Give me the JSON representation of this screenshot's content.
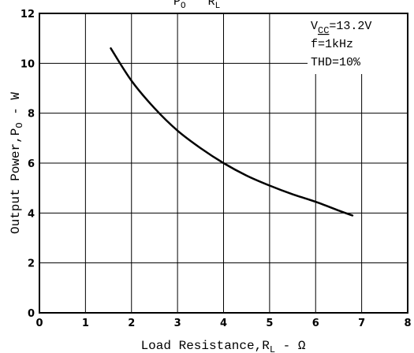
{
  "chart_data": {
    "type": "line",
    "title_fragment": [
      "P",
      "O",
      "R",
      "L"
    ],
    "xlabel": {
      "main": "Load Resistance,R",
      "sub": "L",
      "unit": " -  Ω"
    },
    "ylabel": {
      "main": "Output Power,P",
      "sub": "O",
      "unit": " - W"
    },
    "xlim": [
      0,
      8
    ],
    "ylim": [
      0,
      12
    ],
    "x_ticks": [
      "0",
      "1",
      "2",
      "3",
      "4",
      "5",
      "6",
      "7",
      "8"
    ],
    "y_ticks": [
      "0",
      "2",
      "4",
      "6",
      "8",
      "10",
      "12"
    ],
    "grid": true,
    "conditions": {
      "vcc_main": "V",
      "vcc_sub": "CC",
      "vcc_value": "=13.2V",
      "freq": "f=1kHz",
      "thd": "THD=10%"
    },
    "series": [
      {
        "x": [
          1.55,
          2.0,
          2.5,
          3.0,
          3.5,
          4.0,
          4.5,
          5.0,
          5.5,
          6.0,
          6.5,
          6.8
        ],
        "y": [
          10.6,
          9.3,
          8.2,
          7.3,
          6.6,
          6.0,
          5.5,
          5.1,
          4.75,
          4.45,
          4.1,
          3.9
        ]
      }
    ]
  }
}
